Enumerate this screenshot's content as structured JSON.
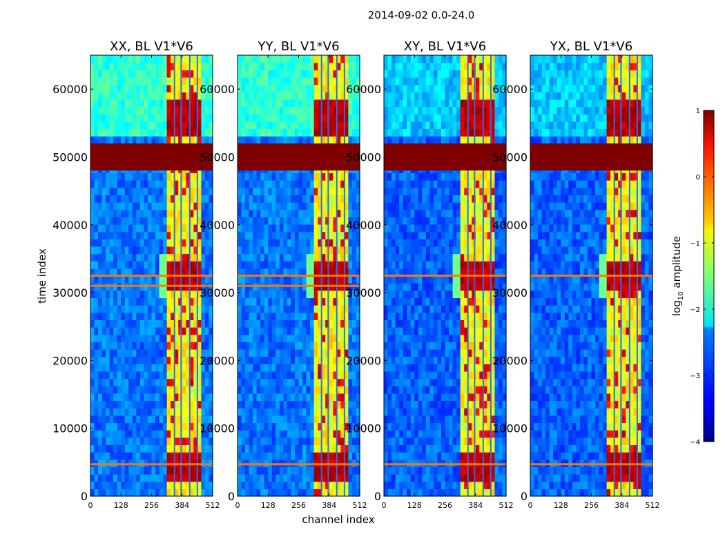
{
  "figure": {
    "suptitle": "2014-09-02 0.0-24.0",
    "xlabel": "channel index",
    "ylabel": "time index"
  },
  "chart_data": [
    {
      "type": "heatmap",
      "title": "XX, BL V1*V6",
      "xlabel": "channel index",
      "ylabel": "time index",
      "xlim": [
        0,
        512
      ],
      "ylim": [
        0,
        65000
      ],
      "xticks": [
        "0",
        "128",
        "256",
        "384",
        "512"
      ],
      "xtick_values": [
        0,
        128,
        256,
        384,
        512
      ],
      "yticks": [
        "0",
        "10000",
        "20000",
        "30000",
        "40000",
        "50000",
        "60000"
      ],
      "ytick_values": [
        0,
        10000,
        20000,
        30000,
        40000,
        50000,
        60000
      ],
      "background_log_amplitude": -2.8,
      "upper_background_log_amplitude": -1.9,
      "bright_band_channels": [
        [
          320,
          470
        ]
      ],
      "hot_time_ranges": [
        [
          48000,
          52000
        ]
      ],
      "hot_rows": [
        4700,
        31000,
        32500
      ]
    },
    {
      "type": "heatmap",
      "title": "YY, BL V1*V6",
      "xlabel": "",
      "ylabel": "",
      "xlim": [
        0,
        512
      ],
      "ylim": [
        0,
        65000
      ],
      "xticks": [
        "0",
        "128",
        "256",
        "384",
        "512"
      ],
      "xtick_values": [
        0,
        128,
        256,
        384,
        512
      ],
      "yticks": [
        "0",
        "10000",
        "20000",
        "30000",
        "40000",
        "50000",
        "60000"
      ],
      "ytick_values": [
        0,
        10000,
        20000,
        30000,
        40000,
        50000,
        60000
      ],
      "background_log_amplitude": -2.8,
      "upper_background_log_amplitude": -1.9,
      "bright_band_channels": [
        [
          320,
          470
        ]
      ],
      "hot_time_ranges": [
        [
          48000,
          52000
        ]
      ],
      "hot_rows": [
        4700,
        31000,
        32500
      ]
    },
    {
      "type": "heatmap",
      "title": "XY, BL V1*V6",
      "xlabel": "",
      "ylabel": "",
      "xlim": [
        0,
        512
      ],
      "ylim": [
        0,
        65000
      ],
      "xticks": [
        "0",
        "128",
        "256",
        "384",
        "512"
      ],
      "xtick_values": [
        0,
        128,
        256,
        384,
        512
      ],
      "yticks": [
        "0",
        "10000",
        "20000",
        "30000",
        "40000",
        "50000",
        "60000"
      ],
      "ytick_values": [
        0,
        10000,
        20000,
        30000,
        40000,
        50000,
        60000
      ],
      "background_log_amplitude": -2.9,
      "upper_background_log_amplitude": -2.4,
      "bright_band_channels": [
        [
          320,
          470
        ]
      ],
      "hot_time_ranges": [
        [
          48000,
          52000
        ]
      ],
      "hot_rows": [
        4700,
        32500
      ]
    },
    {
      "type": "heatmap",
      "title": "YX, BL V1*V6",
      "xlabel": "",
      "ylabel": "",
      "xlim": [
        0,
        512
      ],
      "ylim": [
        0,
        65000
      ],
      "xticks": [
        "0",
        "128",
        "256",
        "384",
        "512"
      ],
      "xtick_values": [
        0,
        128,
        256,
        384,
        512
      ],
      "yticks": [
        "0",
        "10000",
        "20000",
        "30000",
        "40000",
        "50000",
        "60000"
      ],
      "ytick_values": [
        0,
        10000,
        20000,
        30000,
        40000,
        50000,
        60000
      ],
      "background_log_amplitude": -2.9,
      "upper_background_log_amplitude": -2.4,
      "bright_band_channels": [
        [
          320,
          470
        ]
      ],
      "hot_time_ranges": [
        [
          48000,
          52000
        ]
      ],
      "hot_rows": [
        4700,
        32500
      ]
    }
  ],
  "colorbar": {
    "label_prefix": "log",
    "label_subscript": "10",
    "label_suffix": " amplitude",
    "range": [
      -4,
      1
    ],
    "ticks": [
      "1",
      "0",
      "−1",
      "−2",
      "−3",
      "−4"
    ],
    "tick_values": [
      1,
      0,
      -1,
      -2,
      -3,
      -4
    ],
    "colormap": "jet"
  }
}
